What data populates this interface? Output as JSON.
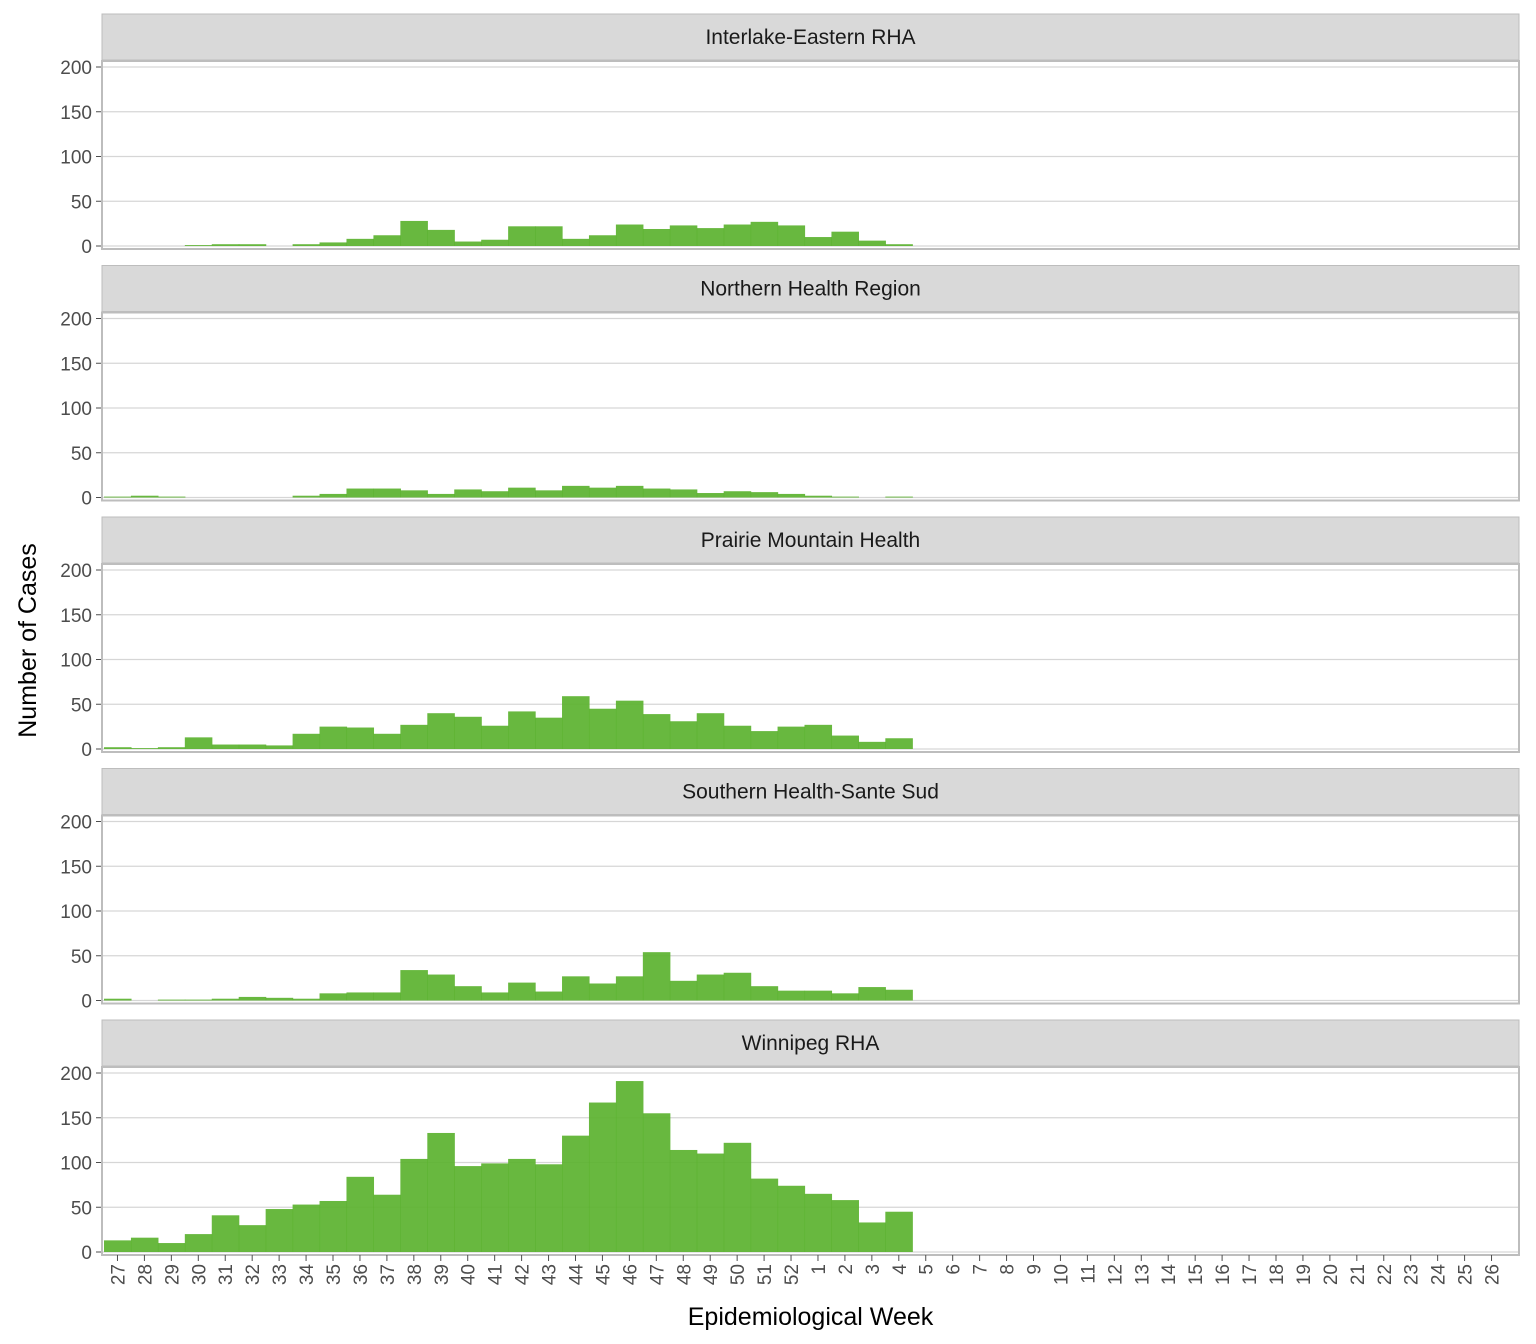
{
  "chart_data": {
    "type": "bar",
    "xlabel": "Epidemiological Week",
    "ylabel": "Number of Cases",
    "ylim": [
      0,
      200
    ],
    "yticks": [
      0,
      50,
      100,
      150,
      200
    ],
    "grid": true,
    "legend": "none",
    "bar_color": "#5bb22f",
    "strip_color": "#d9d9d9",
    "categories": [
      "27",
      "28",
      "29",
      "30",
      "31",
      "32",
      "33",
      "34",
      "35",
      "36",
      "37",
      "38",
      "39",
      "40",
      "41",
      "42",
      "43",
      "44",
      "45",
      "46",
      "47",
      "48",
      "49",
      "50",
      "51",
      "52",
      "1",
      "2",
      "3",
      "4",
      "5",
      "6",
      "7",
      "8",
      "9",
      "10",
      "11",
      "12",
      "13",
      "14",
      "15",
      "16",
      "17",
      "18",
      "19",
      "20",
      "21",
      "22",
      "23",
      "24",
      "25",
      "26"
    ],
    "panels": [
      {
        "name": "Interlake-Eastern RHA",
        "values": [
          0,
          0,
          0,
          1,
          2,
          2,
          0,
          2,
          4,
          8,
          12,
          28,
          18,
          5,
          7,
          22,
          22,
          8,
          12,
          24,
          19,
          23,
          20,
          24,
          27,
          23,
          10,
          16,
          6,
          2
        ]
      },
      {
        "name": "Northern Health Region",
        "values": [
          1,
          2,
          1,
          0,
          0,
          0,
          0,
          2,
          4,
          10,
          10,
          8,
          4,
          9,
          7,
          11,
          8,
          13,
          11,
          13,
          10,
          9,
          5,
          7,
          6,
          4,
          2,
          1,
          0,
          1
        ]
      },
      {
        "name": "Prairie Mountain Health",
        "values": [
          2,
          1,
          2,
          13,
          5,
          5,
          4,
          17,
          25,
          24,
          17,
          27,
          40,
          36,
          26,
          42,
          35,
          59,
          45,
          54,
          39,
          31,
          40,
          26,
          20,
          25,
          27,
          15,
          8,
          12
        ]
      },
      {
        "name": "Southern Health-Sante Sud",
        "values": [
          2,
          0,
          1,
          1,
          2,
          4,
          3,
          2,
          8,
          9,
          9,
          34,
          29,
          16,
          9,
          20,
          10,
          27,
          19,
          27,
          54,
          22,
          29,
          31,
          16,
          11,
          11,
          8,
          15,
          12
        ]
      },
      {
        "name": "Winnipeg RHA",
        "values": [
          13,
          16,
          10,
          20,
          41,
          30,
          48,
          53,
          57,
          84,
          64,
          104,
          133,
          96,
          99,
          104,
          98,
          130,
          167,
          191,
          155,
          114,
          110,
          122,
          82,
          74,
          65,
          58,
          33,
          45
        ]
      }
    ]
  }
}
